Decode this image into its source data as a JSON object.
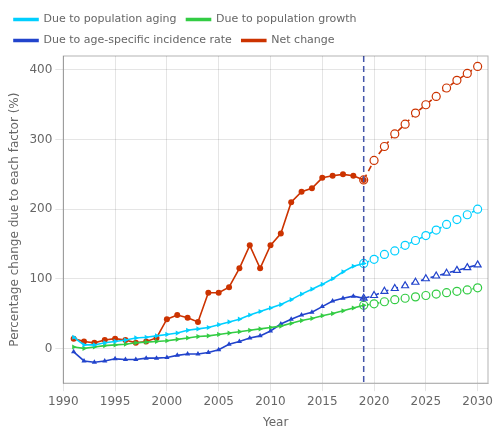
{
  "chart_data": {
    "type": "line",
    "xlabel": "Year",
    "ylabel": "Percentage change due to each factor (%)",
    "xlim": [
      1990,
      2031
    ],
    "ylim": [
      -50,
      420
    ],
    "xticks": [
      1990,
      1995,
      2000,
      2005,
      2010,
      2015,
      2020,
      2025,
      2030
    ],
    "yticks": [
      0,
      100,
      200,
      300,
      400
    ],
    "grid": true,
    "legend": "upper left",
    "series": [
      {
        "name": "Due to population aging",
        "color": "#00cfff",
        "marker": "triangle_right",
        "line_style": "solid",
        "x": [
          1991,
          1992,
          1993,
          1994,
          1995,
          1996,
          1997,
          1998,
          1999,
          2000,
          2001,
          2002,
          2003,
          2004,
          2005,
          2006,
          2007,
          2008,
          2009,
          2010,
          2011,
          2012,
          2013,
          2014,
          2015,
          2016,
          2017,
          2018,
          2019
        ],
        "values": [
          16,
          5,
          5,
          8,
          10,
          12,
          15,
          16,
          18,
          20,
          22,
          26,
          28,
          30,
          34,
          38,
          42,
          48,
          53,
          58,
          63,
          70,
          78,
          85,
          92,
          100,
          110,
          118,
          122
        ]
      },
      {
        "name": "Due to population growth",
        "color": "#33cc44",
        "marker": "triangle_right",
        "line_style": "solid",
        "x": [
          1991,
          1992,
          1993,
          1994,
          1995,
          1996,
          1997,
          1998,
          1999,
          2000,
          2001,
          2002,
          2003,
          2004,
          2005,
          2006,
          2007,
          2008,
          2009,
          2010,
          2011,
          2012,
          2013,
          2014,
          2015,
          2016,
          2017,
          2018,
          2019
        ],
        "values": [
          2,
          0,
          2,
          4,
          5,
          6,
          8,
          9,
          10,
          11,
          13,
          15,
          17,
          18,
          20,
          22,
          24,
          26,
          28,
          30,
          32,
          36,
          40,
          43,
          47,
          50,
          54,
          58,
          62
        ]
      },
      {
        "name": "Due to age-specific incidence rate",
        "color": "#2244cc",
        "marker": "triangle",
        "line_style": "solid",
        "x": [
          1991,
          1992,
          1993,
          1994,
          1995,
          1996,
          1997,
          1998,
          1999,
          2000,
          2001,
          2002,
          2003,
          2004,
          2005,
          2006,
          2007,
          2008,
          2009,
          2010,
          2011,
          2012,
          2013,
          2014,
          2015,
          2016,
          2017,
          2018,
          2019
        ],
        "values": [
          -5,
          -18,
          -20,
          -18,
          -15,
          -16,
          -16,
          -14,
          -14,
          -13,
          -10,
          -8,
          -8,
          -6,
          -2,
          6,
          10,
          15,
          18,
          25,
          35,
          42,
          48,
          52,
          60,
          68,
          72,
          75,
          72
        ]
      },
      {
        "name": "Net change",
        "color": "#cc3300",
        "marker": "circle",
        "line_style": "solid",
        "x": [
          1991,
          1992,
          1993,
          1994,
          1995,
          1996,
          1997,
          1998,
          1999,
          2000,
          2001,
          2002,
          2003,
          2004,
          2005,
          2006,
          2007,
          2008,
          2009,
          2010,
          2011,
          2012,
          2013,
          2014,
          2015,
          2016,
          2017,
          2018,
          2019
        ],
        "values": [
          14,
          10,
          8,
          12,
          14,
          12,
          8,
          10,
          15,
          42,
          48,
          44,
          38,
          80,
          80,
          88,
          115,
          148,
          115,
          148,
          165,
          210,
          225,
          230,
          245,
          248,
          250,
          248,
          242
        ]
      },
      {
        "color": "#00cfff",
        "marker": "circle",
        "line_style": "dashed",
        "x": [
          2019,
          2020,
          2021,
          2022,
          2023,
          2024,
          2025,
          2026,
          2027,
          2028,
          2029,
          2030
        ],
        "values": [
          122,
          128,
          135,
          140,
          148,
          155,
          162,
          170,
          178,
          185,
          192,
          200
        ]
      },
      {
        "color": "#33cc44",
        "marker": "circle",
        "line_style": "dashed",
        "x": [
          2019,
          2020,
          2021,
          2022,
          2023,
          2024,
          2025,
          2026,
          2027,
          2028,
          2029,
          2030
        ],
        "values": [
          62,
          64,
          67,
          70,
          72,
          74,
          76,
          78,
          80,
          82,
          84,
          87
        ]
      },
      {
        "color": "#2244cc",
        "marker": "triangle",
        "line_style": "dashed",
        "x": [
          2019,
          2020,
          2021,
          2022,
          2023,
          2024,
          2025,
          2026,
          2027,
          2028,
          2029,
          2030
        ],
        "values": [
          72,
          76,
          82,
          86,
          90,
          95,
          100,
          104,
          108,
          112,
          116,
          120
        ]
      },
      {
        "color": "#cc3300",
        "marker": "circle",
        "line_style": "dashed",
        "x": [
          2019,
          2020,
          2021,
          2022,
          2023,
          2024,
          2025,
          2026,
          2027,
          2028,
          2029,
          2030
        ],
        "values": [
          242,
          270,
          290,
          308,
          322,
          338,
          350,
          362,
          374,
          385,
          395,
          405
        ]
      }
    ],
    "vlines": [
      {
        "x": 2019,
        "color": "#4455aa",
        "line_style": "dashed"
      }
    ]
  }
}
